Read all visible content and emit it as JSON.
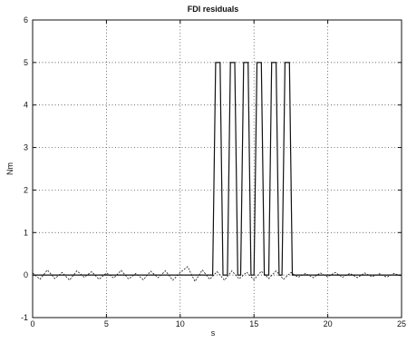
{
  "chart_data": {
    "type": "line",
    "title": "FDI residuals",
    "xlabel": "s",
    "ylabel": "Nm",
    "xlim": [
      0,
      25
    ],
    "ylim": [
      -1,
      6
    ],
    "xticks": [
      0,
      5,
      10,
      15,
      20,
      25
    ],
    "yticks": [
      -1,
      0,
      1,
      2,
      3,
      4,
      5,
      6
    ],
    "grid": true,
    "series": [
      {
        "style": "solid",
        "x": [
          0,
          12.2,
          12.4,
          12.5,
          12.7,
          12.9,
          13.2,
          13.4,
          13.5,
          13.7,
          13.9,
          14.1,
          14.3,
          14.4,
          14.6,
          14.8,
          15.0,
          15.2,
          15.3,
          15.5,
          15.7,
          16.0,
          16.2,
          16.3,
          16.5,
          16.7,
          16.9,
          17.1,
          17.2,
          17.4,
          17.6,
          25
        ],
        "y": [
          0,
          0,
          5,
          5,
          5,
          0,
          0,
          5,
          5,
          5,
          0,
          0,
          5,
          5,
          5,
          0,
          0,
          5,
          5,
          5,
          0,
          0,
          5,
          5,
          5,
          0,
          0,
          5,
          5,
          5,
          0,
          0
        ]
      },
      {
        "style": "dashed",
        "x": [
          0,
          0.5,
          1,
          1.5,
          2,
          2.5,
          3,
          3.5,
          4,
          4.5,
          5,
          5.5,
          6,
          6.5,
          7,
          7.5,
          8,
          8.5,
          9,
          9.5,
          10,
          10.5,
          11,
          11.5,
          12,
          12.5,
          13,
          13.5,
          14,
          14.5,
          15,
          15.5,
          16,
          16.5,
          17,
          17.5,
          18,
          18.5,
          19,
          19.5,
          20,
          20.5,
          21,
          21.5,
          22,
          22.5,
          23,
          23.5,
          24,
          24.5,
          25
        ],
        "y": [
          0.05,
          -0.1,
          0.12,
          -0.08,
          0.06,
          -0.12,
          0.1,
          -0.05,
          0.08,
          -0.1,
          0.05,
          -0.07,
          0.11,
          -0.09,
          0.04,
          -0.11,
          0.09,
          -0.06,
          0.1,
          -0.12,
          0.06,
          0.2,
          -0.15,
          0.12,
          -0.1,
          0.08,
          -0.12,
          0.1,
          -0.09,
          0.07,
          -0.11,
          0.09,
          -0.08,
          0.1,
          -0.1,
          0.06,
          -0.05,
          0.04,
          -0.06,
          0.05,
          -0.04,
          0.06,
          -0.05,
          0.04,
          -0.06,
          0.05,
          -0.04,
          0.03,
          -0.05,
          0.04,
          -0.03
        ]
      }
    ]
  }
}
